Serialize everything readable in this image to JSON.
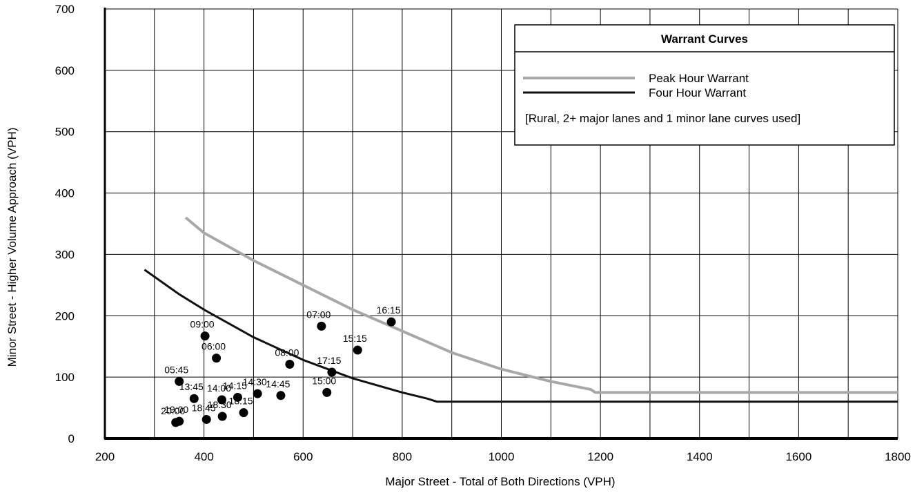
{
  "chart_data": {
    "type": "scatter",
    "xlabel": "Major Street - Total of Both Directions (VPH)",
    "ylabel": "Minor Street - Higher Volume Approach (VPH)",
    "xlim": [
      200,
      1800
    ],
    "ylim": [
      0,
      700
    ],
    "x_ticks": [
      "200",
      "400",
      "600",
      "800",
      "1000",
      "1200",
      "1400",
      "1600",
      "1800"
    ],
    "y_ticks": [
      "0",
      "100",
      "200",
      "300",
      "400",
      "500",
      "600",
      "700"
    ],
    "grid_x_step": 100,
    "grid_y_step": 100,
    "grid": true,
    "legend": {
      "title": "Warrant Curves",
      "placement": "top-right",
      "entries": [
        "Peak Hour Warrant",
        "Four Hour Warrant"
      ],
      "note": "[Rural,  2+ major lanes and 1 minor lane curves used]"
    },
    "series": [
      {
        "name": "Peak Hour Warrant",
        "color": "#a8a8a8",
        "x": [
          363,
          400,
          500,
          600,
          700,
          800,
          900,
          1000,
          1100,
          1180,
          1190,
          1800
        ],
        "y": [
          360,
          335,
          290,
          250,
          210,
          175,
          140,
          113,
          93,
          80,
          75,
          75
        ]
      },
      {
        "name": "Four Hour Warrant",
        "color": "#111111",
        "x": [
          280,
          350,
          400,
          500,
          600,
          700,
          800,
          850,
          870,
          1800
        ],
        "y": [
          275,
          235,
          210,
          165,
          128,
          98,
          75,
          65,
          60,
          60
        ]
      }
    ],
    "points": [
      {
        "label": "16:15",
        "x": 778,
        "y": 190
      },
      {
        "label": "07:00",
        "x": 637,
        "y": 183
      },
      {
        "label": "09:00",
        "x": 402,
        "y": 167
      },
      {
        "label": "15:15",
        "x": 710,
        "y": 144
      },
      {
        "label": "06:00",
        "x": 425,
        "y": 131
      },
      {
        "label": "08:00",
        "x": 573,
        "y": 121
      },
      {
        "label": "17:15",
        "x": 658,
        "y": 108
      },
      {
        "label": "05:45",
        "x": 350,
        "y": 93
      },
      {
        "label": "15:00",
        "x": 648,
        "y": 75
      },
      {
        "label": "14:30",
        "x": 508,
        "y": 73
      },
      {
        "label": "14:45",
        "x": 555,
        "y": 70
      },
      {
        "label": "14:15",
        "x": 468,
        "y": 67
      },
      {
        "label": "13:45",
        "x": 380,
        "y": 65
      },
      {
        "label": "14:00",
        "x": 436,
        "y": 63
      },
      {
        "label": "18:15",
        "x": 480,
        "y": 42
      },
      {
        "label": "18:30",
        "x": 437,
        "y": 36
      },
      {
        "label": "18:45",
        "x": 405,
        "y": 31
      },
      {
        "label": "19:00",
        "x": 350,
        "y": 28
      },
      {
        "label": "20:00",
        "x": 343,
        "y": 26
      }
    ]
  }
}
